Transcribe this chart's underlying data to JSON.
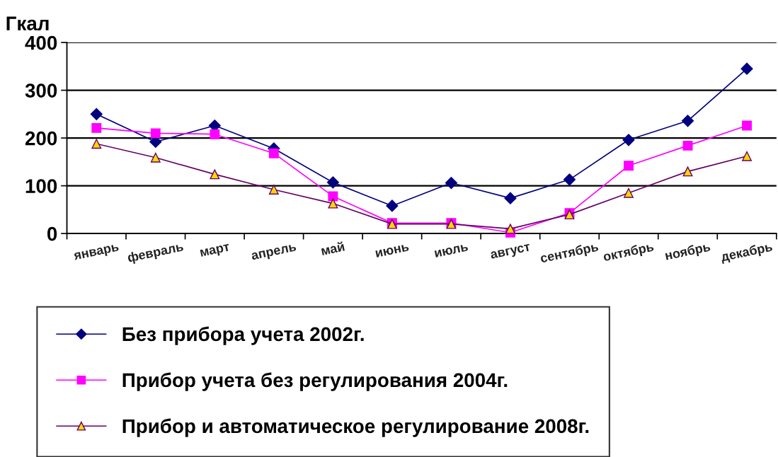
{
  "chart_data": {
    "type": "line",
    "ylabel": "Гкал",
    "categories": [
      "январь",
      "февраль",
      "март",
      "апрель",
      "май",
      "июнь",
      "июль",
      "август",
      "сентябрь",
      "октябрь",
      "ноябрь",
      "декабрь"
    ],
    "series": [
      {
        "name": "Без прибора учета 2002г.",
        "color": "#000080",
        "marker": "diamond",
        "values": [
          250,
          192,
          226,
          178,
          107,
          58,
          106,
          74,
          113,
          196,
          236,
          345
        ]
      },
      {
        "name": "Прибор учета без регулирования 2004г.",
        "color": "#ff00ff",
        "marker": "square",
        "values": [
          221,
          210,
          208,
          168,
          78,
          22,
          22,
          2,
          43,
          142,
          184,
          226
        ]
      },
      {
        "name": "Прибор и автоматическое регулирование 2008г.",
        "color": "#660066",
        "marker": "triangle",
        "values": [
          188,
          159,
          124,
          92,
          63,
          20,
          20,
          10,
          40,
          85,
          130,
          162
        ]
      }
    ],
    "ylim": [
      0,
      400
    ],
    "yticks": [
      0,
      100,
      200,
      300,
      400
    ],
    "grid": "y",
    "legend": "bottom",
    "line_style": "solid"
  }
}
